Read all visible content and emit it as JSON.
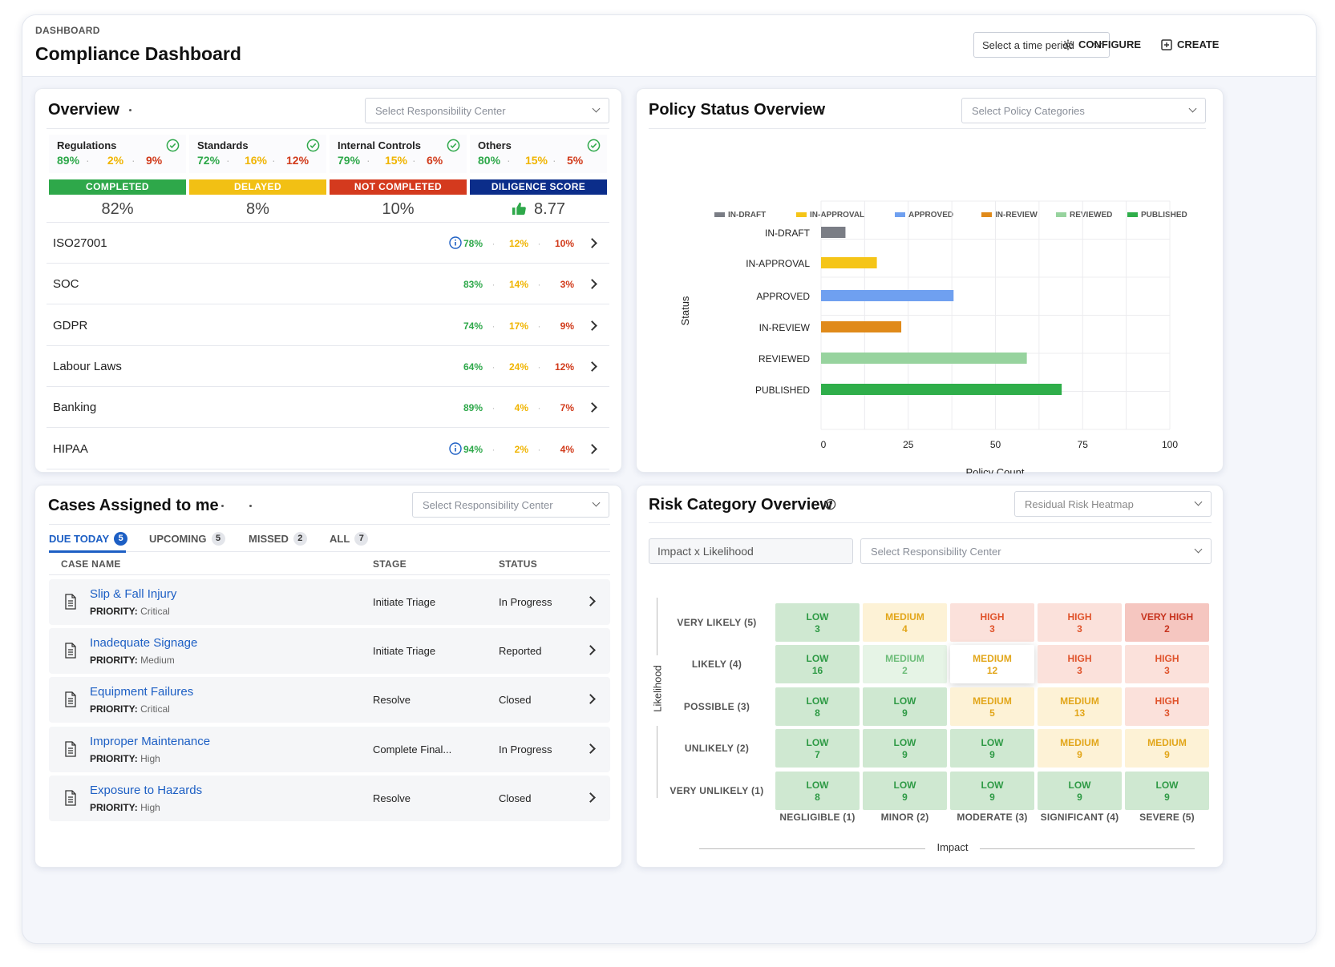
{
  "header": {
    "breadcrumb": "DASHBOARD",
    "title": "Compliance Dashboard",
    "period_placeholder": "Select a time period",
    "configure_label": "CONFIGURE",
    "create_label": "CREATE"
  },
  "overview": {
    "title": "Overview",
    "select_placeholder": "Select Responsibility Center",
    "stats": [
      {
        "name": "Regulations",
        "completed": "89%",
        "delayed": "2%",
        "not_completed": "9%"
      },
      {
        "name": "Standards",
        "completed": "72%",
        "delayed": "16%",
        "not_completed": "12%"
      },
      {
        "name": "Internal Controls",
        "completed": "79%",
        "delayed": "15%",
        "not_completed": "6%"
      },
      {
        "name": "Others",
        "completed": "80%",
        "delayed": "15%",
        "not_completed": "5%"
      }
    ],
    "legend": [
      {
        "label": "COMPLETED",
        "value": "82%",
        "color": "#2ea84a"
      },
      {
        "label": "DELAYED",
        "value": "8%",
        "color": "#f2c014"
      },
      {
        "label": "NOT COMPLETED",
        "value": "10%",
        "color": "#d43a1e"
      },
      {
        "label": "DILIGENCE SCORE",
        "value": "8.77",
        "color": "#0b2d8a"
      }
    ],
    "rows": [
      {
        "name": "ISO27001",
        "completed": "78%",
        "delayed": "12%",
        "not_completed": "10%",
        "info": true
      },
      {
        "name": "SOC",
        "completed": "83%",
        "delayed": "14%",
        "not_completed": "3%",
        "info": false
      },
      {
        "name": "GDPR",
        "completed": "74%",
        "delayed": "17%",
        "not_completed": "9%",
        "info": false
      },
      {
        "name": "Labour Laws",
        "completed": "64%",
        "delayed": "24%",
        "not_completed": "12%",
        "info": false
      },
      {
        "name": "Banking",
        "completed": "89%",
        "delayed": "4%",
        "not_completed": "7%",
        "info": false
      },
      {
        "name": "HIPAA",
        "completed": "94%",
        "delayed": "2%",
        "not_completed": "4%",
        "info": true
      }
    ]
  },
  "policy": {
    "title": "Policy Status Overview",
    "select_placeholder": "Select Policy Categories",
    "chart_data": {
      "type": "bar",
      "orientation": "horizontal",
      "categories": [
        "IN-DRAFT",
        "IN-APPROVAL",
        "APPROVED",
        "IN-REVIEW",
        "REVIEWED",
        "PUBLISHED"
      ],
      "values": [
        7,
        16,
        38,
        23,
        59,
        69
      ],
      "colors": [
        "#7a7d85",
        "#f5c518",
        "#6fa0f0",
        "#e08a1a",
        "#97d39e",
        "#2fae4a"
      ],
      "xlabel": "Policy Count",
      "ylabel": "Status",
      "xlim": [
        0,
        100
      ],
      "xticks": [
        "0",
        "25",
        "50",
        "75",
        "100"
      ],
      "legend": [
        "IN-DRAFT",
        "IN-APPROVAL",
        "APPROVED",
        "IN-REVIEW",
        "REVIEWED",
        "PUBLISHED"
      ],
      "legend_position": "top",
      "grid": true
    }
  },
  "cases": {
    "title": "Cases Assigned to me",
    "select_placeholder": "Select Responsibility Center",
    "tabs": [
      {
        "label": "DUE TODAY",
        "count": "5"
      },
      {
        "label": "UPCOMING",
        "count": "5"
      },
      {
        "label": "MISSED",
        "count": "2"
      },
      {
        "label": "ALL",
        "count": "7"
      }
    ],
    "columns": [
      "CASE NAME",
      "STAGE",
      "STATUS"
    ],
    "priority_label": "PRIORITY:",
    "rows": [
      {
        "name": "Slip & Fall Injury",
        "priority": "Critical",
        "stage": "Initiate Triage",
        "status": "In Progress"
      },
      {
        "name": "Inadequate Signage",
        "priority": "Medium",
        "stage": "Initiate Triage",
        "status": "Reported"
      },
      {
        "name": "Equipment Failures",
        "priority": "Critical",
        "stage": "Resolve",
        "status": "Closed"
      },
      {
        "name": "Improper Maintenance",
        "priority": "High",
        "stage": "Complete Final...",
        "status": "In Progress"
      },
      {
        "name": "Exposure to Hazards",
        "priority": "High",
        "stage": "Resolve",
        "status": "Closed"
      }
    ]
  },
  "risk": {
    "title": "Risk Category Overview",
    "heatmap_select": "Residual Risk Heatmap",
    "formula": "Impact x Likelihood",
    "select_placeholder": "Select Responsibility Center",
    "y_axis": "Likelihood",
    "x_axis": "Impact",
    "row_labels": [
      "VERY LIKELY (5)",
      "LIKELY (4)",
      "POSSIBLE (3)",
      "UNLIKELY (2)",
      "VERY UNLIKELY (1)"
    ],
    "col_labels": [
      "NEGLIGIBLE (1)",
      "MINOR (2)",
      "MODERATE (3)",
      "SIGNIFICANT (4)",
      "SEVERE (5)"
    ],
    "cells": [
      [
        {
          "level": "LOW",
          "count": "3",
          "tone": "low"
        },
        {
          "level": "MEDIUM",
          "count": "4",
          "tone": "med"
        },
        {
          "level": "HIGH",
          "count": "3",
          "tone": "high"
        },
        {
          "level": "HIGH",
          "count": "3",
          "tone": "high"
        },
        {
          "level": "VERY HIGH",
          "count": "2",
          "tone": "vhigh"
        }
      ],
      [
        {
          "level": "LOW",
          "count": "16",
          "tone": "low"
        },
        {
          "level": "MEDIUM",
          "count": "2",
          "tone": "medlight"
        },
        {
          "level": "MEDIUM",
          "count": "12",
          "tone": "focus"
        },
        {
          "level": "HIGH",
          "count": "3",
          "tone": "high"
        },
        {
          "level": "HIGH",
          "count": "3",
          "tone": "high"
        }
      ],
      [
        {
          "level": "LOW",
          "count": "8",
          "tone": "low"
        },
        {
          "level": "LOW",
          "count": "9",
          "tone": "low"
        },
        {
          "level": "MEDIUM",
          "count": "5",
          "tone": "med"
        },
        {
          "level": "MEDIUM",
          "count": "13",
          "tone": "med"
        },
        {
          "level": "HIGH",
          "count": "3",
          "tone": "high"
        }
      ],
      [
        {
          "level": "LOW",
          "count": "7",
          "tone": "low"
        },
        {
          "level": "LOW",
          "count": "9",
          "tone": "low"
        },
        {
          "level": "LOW",
          "count": "9",
          "tone": "low"
        },
        {
          "level": "MEDIUM",
          "count": "9",
          "tone": "med"
        },
        {
          "level": "MEDIUM",
          "count": "9",
          "tone": "med"
        }
      ],
      [
        {
          "level": "LOW",
          "count": "8",
          "tone": "low"
        },
        {
          "level": "LOW",
          "count": "9",
          "tone": "low"
        },
        {
          "level": "LOW",
          "count": "9",
          "tone": "low"
        },
        {
          "level": "LOW",
          "count": "9",
          "tone": "low"
        },
        {
          "level": "LOW",
          "count": "9",
          "tone": "low"
        }
      ]
    ]
  }
}
